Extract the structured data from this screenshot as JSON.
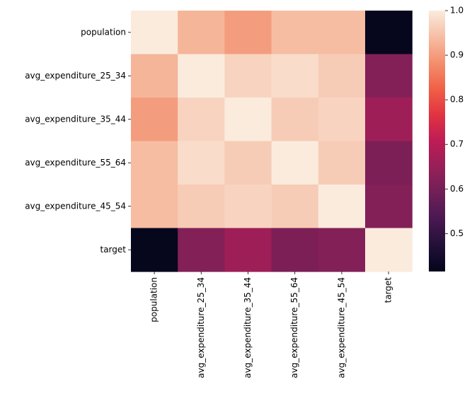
{
  "chart_data": {
    "type": "heatmap",
    "title": "",
    "xlabel": "",
    "ylabel": "",
    "rows": [
      "population",
      "avg_expenditure_25_34",
      "avg_expenditure_35_44",
      "avg_expenditure_55_64",
      "avg_expenditure_45_54",
      "target"
    ],
    "columns": [
      "population",
      "avg_expenditure_25_34",
      "avg_expenditure_35_44",
      "avg_expenditure_55_64",
      "avg_expenditure_45_54",
      "target"
    ],
    "values": [
      [
        1.0,
        0.93,
        0.9,
        0.94,
        0.94,
        0.42
      ],
      [
        0.93,
        1.0,
        0.97,
        0.98,
        0.96,
        0.62
      ],
      [
        0.9,
        0.97,
        1.0,
        0.96,
        0.97,
        0.66
      ],
      [
        0.94,
        0.98,
        0.96,
        1.0,
        0.96,
        0.61
      ],
      [
        0.94,
        0.96,
        0.97,
        0.96,
        1.0,
        0.62
      ],
      [
        0.42,
        0.62,
        0.66,
        0.61,
        0.62,
        1.0
      ]
    ],
    "colorbar": {
      "ticks": [
        "0.5",
        "0.6",
        "0.7",
        "0.8",
        "0.9",
        "1.0"
      ],
      "tick_values": [
        0.5,
        0.6,
        0.7,
        0.8,
        0.9,
        1.0
      ],
      "vmin": 0.415,
      "vmax": 1.0
    },
    "colormap": "rocket",
    "grid": false,
    "legend": "colorbar-right"
  }
}
